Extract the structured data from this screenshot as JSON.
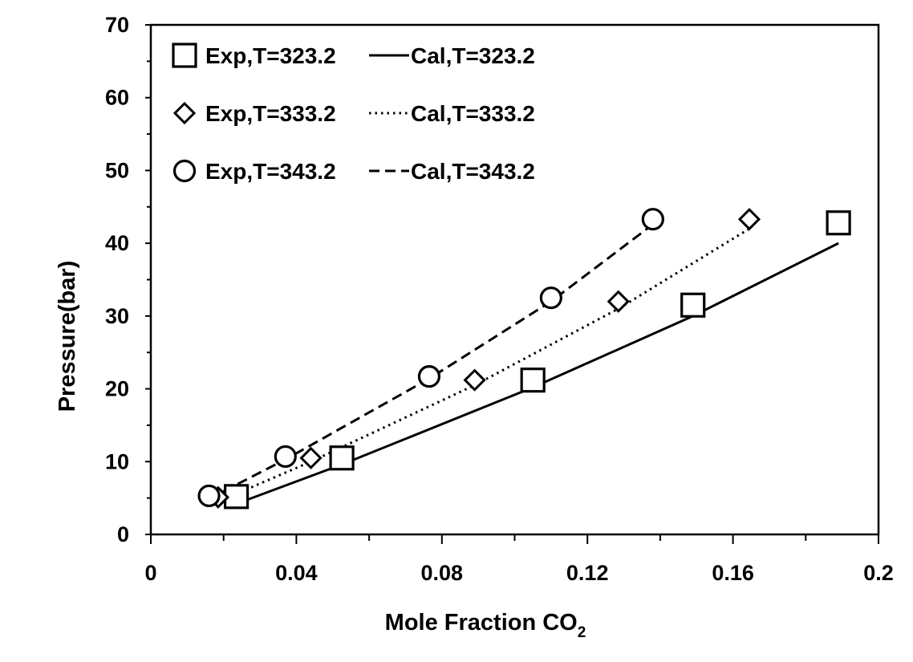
{
  "chart_data": {
    "type": "scatter",
    "title": "",
    "xlabel": "Mole Fraction CO",
    "xlabel_subscript": "2",
    "ylabel": "Pressure(bar)",
    "xlim": [
      0,
      0.2
    ],
    "ylim": [
      0,
      70
    ],
    "x_ticks": [
      0,
      0.04,
      0.08,
      0.12,
      0.16,
      0.2
    ],
    "x_tick_labels": [
      "0",
      "0.04",
      "0.08",
      "0.12",
      "0.16",
      "0.2"
    ],
    "y_ticks": [
      0,
      10,
      20,
      30,
      40,
      50,
      60,
      70
    ],
    "y_tick_labels": [
      "0",
      "10",
      "20",
      "30",
      "40",
      "50",
      "60",
      "70"
    ],
    "grid": false,
    "legend_position": "top-left",
    "series": [
      {
        "name": "Exp,T=323.2",
        "kind": "marker",
        "marker": "square",
        "x": [
          0.0235,
          0.0525,
          0.105,
          0.149,
          0.189
        ],
        "y": [
          5.2,
          10.5,
          21.2,
          31.5,
          42.8
        ]
      },
      {
        "name": "Exp,T=333.2",
        "kind": "marker",
        "marker": "diamond",
        "x": [
          0.0185,
          0.044,
          0.089,
          0.1285,
          0.1645
        ],
        "y": [
          5.1,
          10.5,
          21.2,
          32.0,
          43.3
        ]
      },
      {
        "name": "Exp,T=343.2",
        "kind": "marker",
        "marker": "circle",
        "x": [
          0.016,
          0.037,
          0.0765,
          0.11,
          0.138
        ],
        "y": [
          5.3,
          10.7,
          21.7,
          32.5,
          43.3
        ]
      },
      {
        "name": "Cal,T=323.2",
        "kind": "line",
        "dash": "solid",
        "x": [
          0.0235,
          0.0525,
          0.105,
          0.149,
          0.189
        ],
        "y": [
          4.2,
          9.6,
          20.2,
          30.0,
          40.0
        ]
      },
      {
        "name": "Cal,T=333.2",
        "kind": "line",
        "dash": "dotted",
        "x": [
          0.0185,
          0.044,
          0.089,
          0.1285,
          0.1645
        ],
        "y": [
          4.5,
          10.0,
          20.5,
          31.0,
          42.0
        ]
      },
      {
        "name": "Cal,T=343.2",
        "kind": "line",
        "dash": "dashed",
        "x": [
          0.016,
          0.037,
          0.0765,
          0.11,
          0.138
        ],
        "y": [
          4.9,
          10.3,
          21.4,
          32.0,
          42.6
        ]
      }
    ],
    "legend": [
      {
        "label": "Exp,T=323.2",
        "marker": "square"
      },
      {
        "label": "Cal,T=323.2",
        "line": "solid"
      },
      {
        "label": "Exp,T=333.2",
        "marker": "diamond"
      },
      {
        "label": "Cal,T=333.2",
        "line": "dotted"
      },
      {
        "label": "Exp,T=343.2",
        "marker": "circle"
      },
      {
        "label": "Cal,T=343.2",
        "line": "dashed"
      }
    ]
  }
}
